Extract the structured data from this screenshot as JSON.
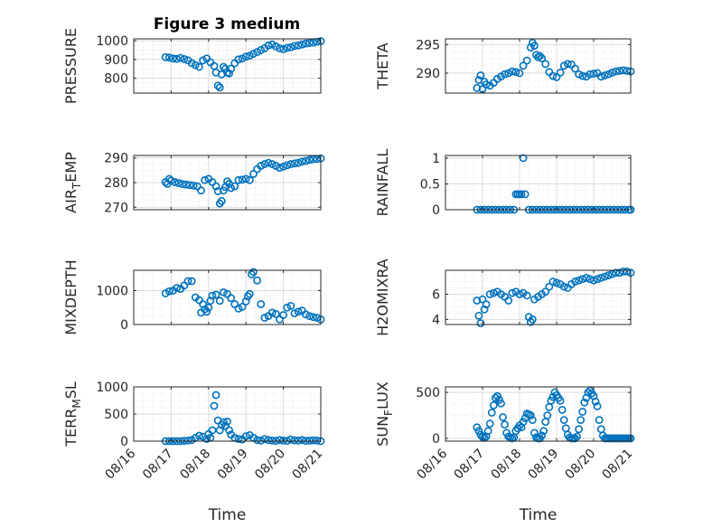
{
  "figure": {
    "title": "Figure 3 medium"
  },
  "colors": {
    "marker": "#0072BD",
    "axis": "#262626",
    "grid_major": "#dcdcdc",
    "grid_minor": "#e9e9e9"
  },
  "chart_data": [
    {
      "type": "scatter",
      "ylabel": "PRESSURE",
      "ylabel_sub": "",
      "ylabel_rest": "",
      "xlabel": "",
      "ylim": [
        720,
        1010
      ],
      "yticks": [
        800,
        900,
        1000
      ],
      "xlim": [
        0,
        5
      ],
      "xticks": [
        0,
        1,
        2,
        3,
        4,
        5
      ],
      "xticklabels": [
        "08/16",
        "08/17",
        "08/18",
        "08/19",
        "08/20",
        "08/21"
      ],
      "show_xticklabels": false,
      "x": [
        0.85,
        0.95,
        1.05,
        1.15,
        1.25,
        1.35,
        1.45,
        1.55,
        1.65,
        1.75,
        1.85,
        1.95,
        2.05,
        2.15,
        2.2,
        2.25,
        2.3,
        2.35,
        2.4,
        2.45,
        2.5,
        2.55,
        2.6,
        2.7,
        2.8,
        2.9,
        3.0,
        3.1,
        3.2,
        3.3,
        3.4,
        3.5,
        3.6,
        3.7,
        3.8,
        3.9,
        4.0,
        4.1,
        4.2,
        4.3,
        4.4,
        4.5,
        4.6,
        4.7,
        4.8,
        4.9,
        5.0
      ],
      "y": [
        912,
        910,
        905,
        903,
        908,
        902,
        895,
        880,
        870,
        860,
        895,
        905,
        885,
        865,
        830,
        760,
        750,
        820,
        860,
        850,
        830,
        825,
        850,
        880,
        900,
        905,
        915,
        920,
        930,
        940,
        950,
        960,
        975,
        980,
        970,
        960,
        955,
        962,
        965,
        972,
        975,
        980,
        985,
        988,
        990,
        995,
        998
      ]
    },
    {
      "type": "scatter",
      "ylabel": "THETA",
      "ylabel_sub": "",
      "ylabel_rest": "",
      "xlabel": "",
      "ylim": [
        286.5,
        296.0
      ],
      "yticks": [
        290,
        295
      ],
      "xlim": [
        0,
        5
      ],
      "xticks": [
        0,
        1,
        2,
        3,
        4,
        5
      ],
      "xticklabels": [
        "08/16",
        "08/17",
        "08/18",
        "08/19",
        "08/20",
        "08/21"
      ],
      "show_xticklabels": false,
      "x": [
        0.85,
        0.9,
        0.95,
        1.0,
        1.05,
        1.1,
        1.2,
        1.3,
        1.4,
        1.5,
        1.6,
        1.7,
        1.8,
        1.9,
        2.0,
        2.1,
        2.2,
        2.3,
        2.35,
        2.4,
        2.45,
        2.5,
        2.55,
        2.6,
        2.7,
        2.8,
        2.9,
        3.0,
        3.1,
        3.2,
        3.3,
        3.4,
        3.5,
        3.6,
        3.7,
        3.8,
        3.9,
        4.0,
        4.1,
        4.2,
        4.3,
        4.4,
        4.5,
        4.6,
        4.7,
        4.8,
        4.9,
        5.0
      ],
      "y": [
        287.4,
        288.8,
        289.6,
        287.2,
        288.5,
        288.0,
        287.8,
        288.3,
        289.0,
        289.4,
        289.8,
        290.0,
        290.3,
        290.2,
        290.0,
        291.3,
        292.2,
        294.5,
        295.3,
        294.8,
        293.2,
        292.8,
        293.0,
        292.6,
        291.6,
        290.2,
        289.5,
        289.3,
        290.1,
        291.3,
        291.6,
        291.5,
        290.8,
        289.8,
        289.5,
        289.4,
        289.8,
        289.9,
        290.0,
        289.4,
        289.6,
        289.8,
        290.1,
        290.3,
        290.4,
        290.5,
        290.4,
        290.3
      ]
    },
    {
      "type": "scatter",
      "ylabel": "AIR",
      "ylabel_sub": "T",
      "ylabel_rest": "EMP",
      "xlabel": "",
      "ylim": [
        269,
        291
      ],
      "yticks": [
        270,
        280,
        290
      ],
      "xlim": [
        0,
        5
      ],
      "xticks": [
        0,
        1,
        2,
        3,
        4,
        5
      ],
      "xticklabels": [
        "08/16",
        "08/17",
        "08/18",
        "08/19",
        "08/20",
        "08/21"
      ],
      "show_xticklabels": false,
      "x": [
        0.85,
        0.9,
        0.95,
        1.0,
        1.1,
        1.2,
        1.3,
        1.4,
        1.5,
        1.6,
        1.7,
        1.8,
        1.9,
        2.0,
        2.1,
        2.2,
        2.25,
        2.3,
        2.35,
        2.4,
        2.45,
        2.5,
        2.55,
        2.6,
        2.7,
        2.8,
        2.9,
        3.0,
        3.1,
        3.2,
        3.3,
        3.4,
        3.5,
        3.6,
        3.7,
        3.8,
        3.9,
        4.0,
        4.1,
        4.2,
        4.3,
        4.4,
        4.5,
        4.6,
        4.7,
        4.8,
        4.9,
        5.0
      ],
      "y": [
        280.2,
        279.5,
        281.5,
        280.8,
        280.2,
        279.8,
        279.4,
        279.2,
        279.0,
        278.8,
        278.5,
        276.8,
        281.0,
        281.5,
        280.2,
        278.5,
        276.5,
        271.5,
        272.5,
        276.8,
        278.2,
        280.5,
        279.5,
        277.8,
        278.5,
        281.0,
        281.2,
        281.5,
        281.0,
        283.5,
        285.5,
        286.8,
        287.5,
        288.0,
        287.5,
        286.8,
        286.0,
        286.5,
        287.0,
        287.5,
        287.8,
        288.0,
        288.5,
        288.8,
        289.2,
        289.5,
        289.6,
        289.8
      ]
    },
    {
      "type": "scatter",
      "ylabel": "RAINFALL",
      "ylabel_sub": "",
      "ylabel_rest": "",
      "xlabel": "",
      "ylim": [
        0,
        1.05
      ],
      "yticks": [
        0,
        0.5,
        1
      ],
      "xlim": [
        0,
        5
      ],
      "xticks": [
        0,
        1,
        2,
        3,
        4,
        5
      ],
      "xticklabels": [
        "08/16",
        "08/17",
        "08/18",
        "08/19",
        "08/20",
        "08/21"
      ],
      "show_xticklabels": false,
      "x": [
        0.85,
        0.95,
        1.05,
        1.15,
        1.25,
        1.35,
        1.45,
        1.55,
        1.65,
        1.75,
        1.85,
        1.9,
        1.95,
        2.0,
        2.05,
        2.1,
        2.15,
        2.25,
        2.35,
        2.45,
        2.55,
        2.65,
        2.75,
        2.85,
        2.95,
        3.05,
        3.15,
        3.25,
        3.35,
        3.45,
        3.55,
        3.65,
        3.75,
        3.85,
        3.95,
        4.05,
        4.15,
        4.25,
        4.35,
        4.45,
        4.55,
        4.65,
        4.75,
        4.85,
        4.95,
        5.0
      ],
      "y": [
        0,
        0,
        0,
        0,
        0,
        0,
        0,
        0,
        0,
        0,
        0,
        0.3,
        0.3,
        0.3,
        0.3,
        1.0,
        0.3,
        0,
        0,
        0,
        0,
        0,
        0,
        0,
        0,
        0,
        0,
        0,
        0,
        0,
        0,
        0,
        0,
        0,
        0,
        0,
        0,
        0,
        0,
        0,
        0,
        0,
        0,
        0,
        0,
        0
      ]
    },
    {
      "type": "scatter",
      "ylabel": "MIXDEPTH",
      "ylabel_sub": "",
      "ylabel_rest": "",
      "xlabel": "",
      "ylim": [
        0,
        1600
      ],
      "yticks": [
        0,
        1000
      ],
      "xlim": [
        0,
        5
      ],
      "xticks": [
        0,
        1,
        2,
        3,
        4,
        5
      ],
      "xticklabels": [
        "08/16",
        "08/17",
        "08/18",
        "08/19",
        "08/20",
        "08/21"
      ],
      "show_xticklabels": false,
      "x": [
        0.85,
        0.95,
        1.05,
        1.15,
        1.25,
        1.35,
        1.45,
        1.55,
        1.65,
        1.75,
        1.8,
        1.85,
        1.9,
        1.95,
        2.0,
        2.05,
        2.1,
        2.2,
        2.3,
        2.4,
        2.5,
        2.6,
        2.7,
        2.8,
        2.9,
        3.0,
        3.05,
        3.1,
        3.15,
        3.2,
        3.3,
        3.4,
        3.5,
        3.6,
        3.7,
        3.8,
        3.9,
        4.0,
        4.1,
        4.2,
        4.3,
        4.4,
        4.5,
        4.6,
        4.7,
        4.8,
        4.9,
        5.0
      ],
      "y": [
        920,
        980,
        1000,
        1080,
        1050,
        1150,
        1280,
        1280,
        800,
        720,
        350,
        600,
        450,
        380,
        500,
        700,
        850,
        880,
        700,
        950,
        900,
        780,
        600,
        470,
        520,
        680,
        830,
        900,
        1480,
        1550,
        1300,
        600,
        200,
        250,
        350,
        310,
        150,
        280,
        500,
        550,
        330,
        380,
        410,
        300,
        250,
        220,
        200,
        150
      ]
    },
    {
      "type": "scatter",
      "ylabel": "H2OMIXRA",
      "ylabel_sub": "",
      "ylabel_rest": "",
      "xlabel": "",
      "ylim": [
        3.6,
        7.9
      ],
      "yticks": [
        4,
        6
      ],
      "xlim": [
        0,
        5
      ],
      "xticks": [
        0,
        1,
        2,
        3,
        4,
        5
      ],
      "xticklabels": [
        "08/16",
        "08/17",
        "08/18",
        "08/19",
        "08/20",
        "08/21"
      ],
      "show_xticklabels": false,
      "x": [
        0.85,
        0.9,
        0.95,
        1.0,
        1.05,
        1.1,
        1.2,
        1.3,
        1.4,
        1.5,
        1.6,
        1.7,
        1.8,
        1.9,
        2.0,
        2.1,
        2.2,
        2.25,
        2.3,
        2.35,
        2.4,
        2.5,
        2.6,
        2.7,
        2.8,
        2.9,
        3.0,
        3.1,
        3.2,
        3.3,
        3.4,
        3.5,
        3.6,
        3.7,
        3.8,
        3.9,
        4.0,
        4.1,
        4.2,
        4.3,
        4.4,
        4.5,
        4.6,
        4.7,
        4.8,
        4.9,
        5.0
      ],
      "y": [
        5.5,
        4.3,
        3.7,
        5.6,
        4.8,
        5.2,
        6.0,
        6.1,
        6.2,
        6.0,
        5.8,
        5.5,
        6.1,
        6.2,
        6.0,
        6.1,
        5.9,
        4.2,
        3.8,
        4.0,
        5.6,
        5.8,
        6.0,
        6.2,
        6.6,
        7.0,
        6.9,
        6.8,
        6.6,
        6.5,
        6.8,
        7.0,
        7.1,
        7.2,
        7.3,
        7.2,
        7.1,
        7.2,
        7.3,
        7.4,
        7.5,
        7.6,
        7.7,
        7.7,
        7.8,
        7.8,
        7.7
      ]
    },
    {
      "type": "scatter",
      "ylabel": "TERR",
      "ylabel_sub": "M",
      "ylabel_rest": "SL",
      "xlabel": "Time",
      "ylim": [
        0,
        1000
      ],
      "yticks": [
        0,
        500,
        1000
      ],
      "xlim": [
        0,
        5
      ],
      "xticks": [
        0,
        1,
        2,
        3,
        4,
        5
      ],
      "xticklabels": [
        "08/16",
        "08/17",
        "08/18",
        "08/19",
        "08/20",
        "08/21"
      ],
      "show_xticklabels": true,
      "x": [
        0.85,
        0.95,
        1.05,
        1.15,
        1.25,
        1.35,
        1.45,
        1.55,
        1.65,
        1.75,
        1.85,
        1.95,
        2.0,
        2.05,
        2.1,
        2.15,
        2.2,
        2.25,
        2.3,
        2.35,
        2.4,
        2.45,
        2.5,
        2.55,
        2.6,
        2.7,
        2.8,
        2.9,
        3.0,
        3.1,
        3.2,
        3.3,
        3.4,
        3.5,
        3.6,
        3.7,
        3.8,
        3.9,
        4.0,
        4.1,
        4.2,
        4.3,
        4.4,
        4.5,
        4.6,
        4.7,
        4.8,
        4.9,
        5.0
      ],
      "y": [
        0,
        0,
        0,
        0,
        0,
        5,
        10,
        20,
        60,
        100,
        80,
        40,
        130,
        60,
        200,
        650,
        850,
        380,
        200,
        300,
        350,
        280,
        360,
        200,
        120,
        60,
        40,
        30,
        90,
        110,
        60,
        20,
        10,
        40,
        20,
        10,
        5,
        20,
        10,
        5,
        30,
        15,
        10,
        20,
        5,
        10,
        15,
        10,
        0
      ]
    },
    {
      "type": "scatter",
      "ylabel": "SUN",
      "ylabel_sub": "F",
      "ylabel_rest": "LUX",
      "xlabel": "Time",
      "ylim": [
        -30,
        560
      ],
      "yticks": [
        0,
        500
      ],
      "xlim": [
        0,
        5
      ],
      "xticks": [
        0,
        1,
        2,
        3,
        4,
        5
      ],
      "xticklabels": [
        "08/16",
        "08/17",
        "08/18",
        "08/19",
        "08/20",
        "08/21"
      ],
      "show_xticklabels": true,
      "x": [
        0.85,
        0.9,
        0.95,
        1.0,
        1.05,
        1.1,
        1.15,
        1.2,
        1.25,
        1.3,
        1.35,
        1.4,
        1.45,
        1.5,
        1.55,
        1.6,
        1.65,
        1.7,
        1.75,
        1.8,
        1.85,
        1.9,
        1.95,
        2.0,
        2.05,
        2.1,
        2.15,
        2.2,
        2.25,
        2.3,
        2.35,
        2.4,
        2.45,
        2.5,
        2.55,
        2.6,
        2.65,
        2.7,
        2.75,
        2.8,
        2.85,
        2.9,
        2.95,
        3.0,
        3.05,
        3.1,
        3.15,
        3.2,
        3.25,
        3.3,
        3.35,
        3.4,
        3.45,
        3.5,
        3.55,
        3.6,
        3.65,
        3.7,
        3.75,
        3.8,
        3.85,
        3.9,
        3.95,
        4.0,
        4.05,
        4.1,
        4.15,
        4.2,
        4.25,
        4.3,
        4.35,
        4.4,
        4.45,
        4.5,
        4.55,
        4.6,
        4.65,
        4.7,
        4.75,
        4.8,
        4.85,
        4.9,
        4.95,
        5.0
      ],
      "y": [
        120,
        80,
        40,
        15,
        5,
        20,
        80,
        160,
        280,
        360,
        440,
        460,
        420,
        380,
        230,
        150,
        60,
        20,
        10,
        0,
        10,
        80,
        110,
        140,
        120,
        180,
        220,
        270,
        260,
        250,
        200,
        60,
        10,
        0,
        0,
        30,
        80,
        180,
        250,
        340,
        410,
        450,
        500,
        470,
        440,
        410,
        310,
        200,
        110,
        40,
        10,
        0,
        0,
        0,
        20,
        100,
        200,
        290,
        390,
        440,
        500,
        520,
        490,
        460,
        400,
        350,
        200,
        100,
        30,
        0,
        0,
        0,
        0,
        0,
        0,
        0,
        0,
        0,
        0,
        0,
        0,
        0,
        0,
        0
      ]
    }
  ]
}
